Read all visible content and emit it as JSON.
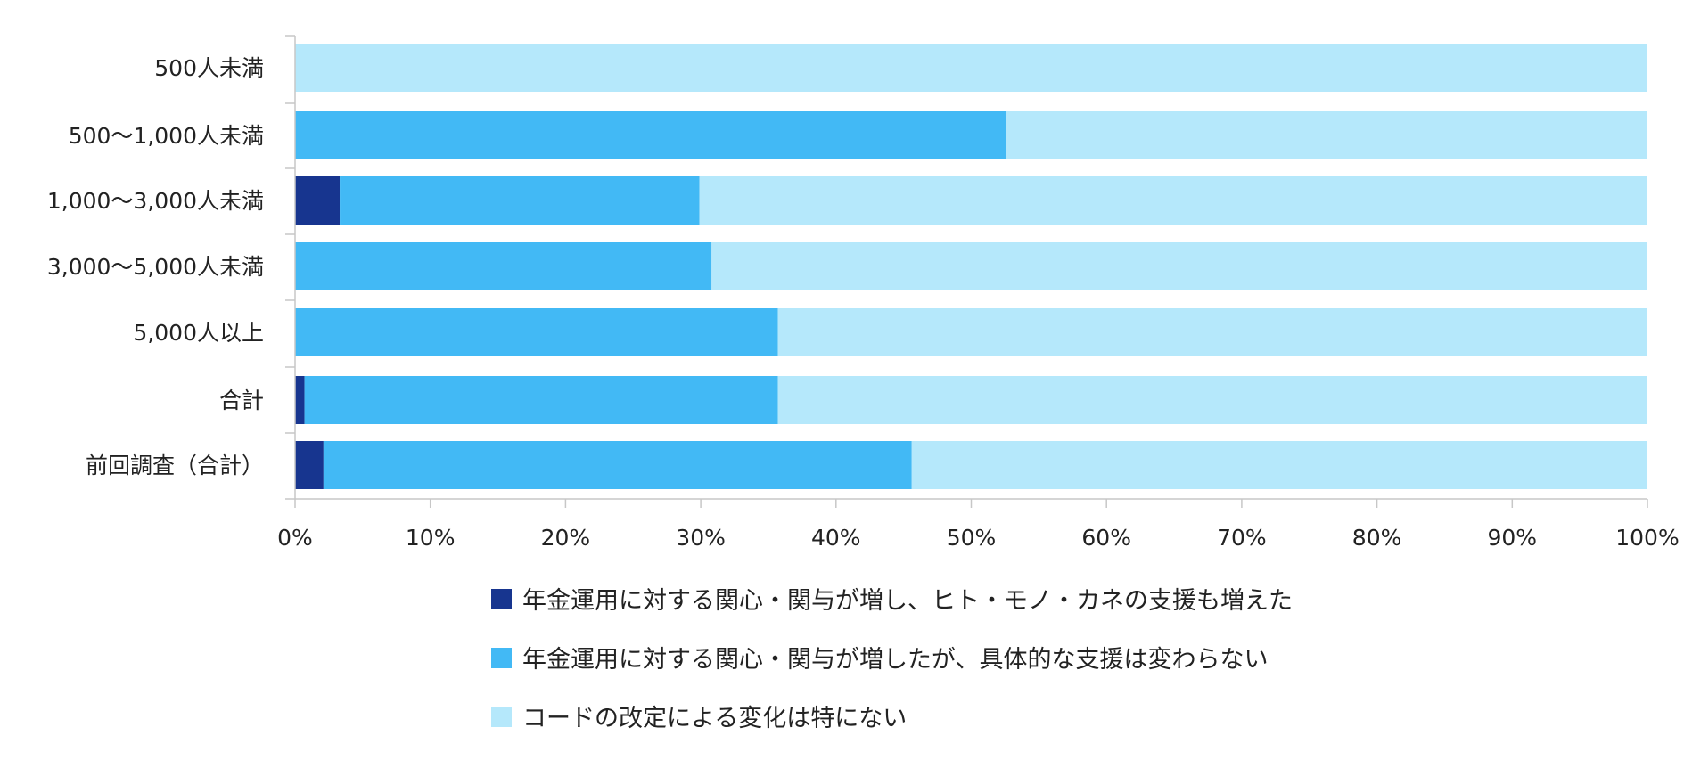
{
  "chart_data": {
    "type": "bar",
    "orientation": "horizontal",
    "stacked": true,
    "normalized": true,
    "categories": [
      "500人未満",
      "500〜1,000人未満",
      "1,000〜3,000人未満",
      "3,000〜5,000人未満",
      "5,000人以上",
      "合計",
      "前回調査（合計）"
    ],
    "series": [
      {
        "name": "年金運用に対する関心・関与が増し、ヒト・モノ・カネの支援も増えた",
        "color": "#17358f",
        "values": [
          0,
          0,
          3.3,
          0,
          0,
          0.7,
          2.1
        ]
      },
      {
        "name": "年金運用に対する関心・関与が増したが、具体的な支援は変わらない",
        "color": "#42b9f5",
        "values": [
          0,
          52.6,
          26.6,
          30.8,
          35.7,
          35.0,
          43.5
        ]
      },
      {
        "name": "コードの改定による変化は特にない",
        "color": "#b5e8fb",
        "values": [
          100,
          47.4,
          70.1,
          69.2,
          64.3,
          64.3,
          54.4
        ]
      }
    ],
    "xlim": [
      0,
      100
    ],
    "x_ticks": [
      "0%",
      "10%",
      "20%",
      "30%",
      "40%",
      "50%",
      "60%",
      "70%",
      "80%",
      "90%",
      "100%"
    ],
    "grid": false,
    "legend": "bottom"
  }
}
